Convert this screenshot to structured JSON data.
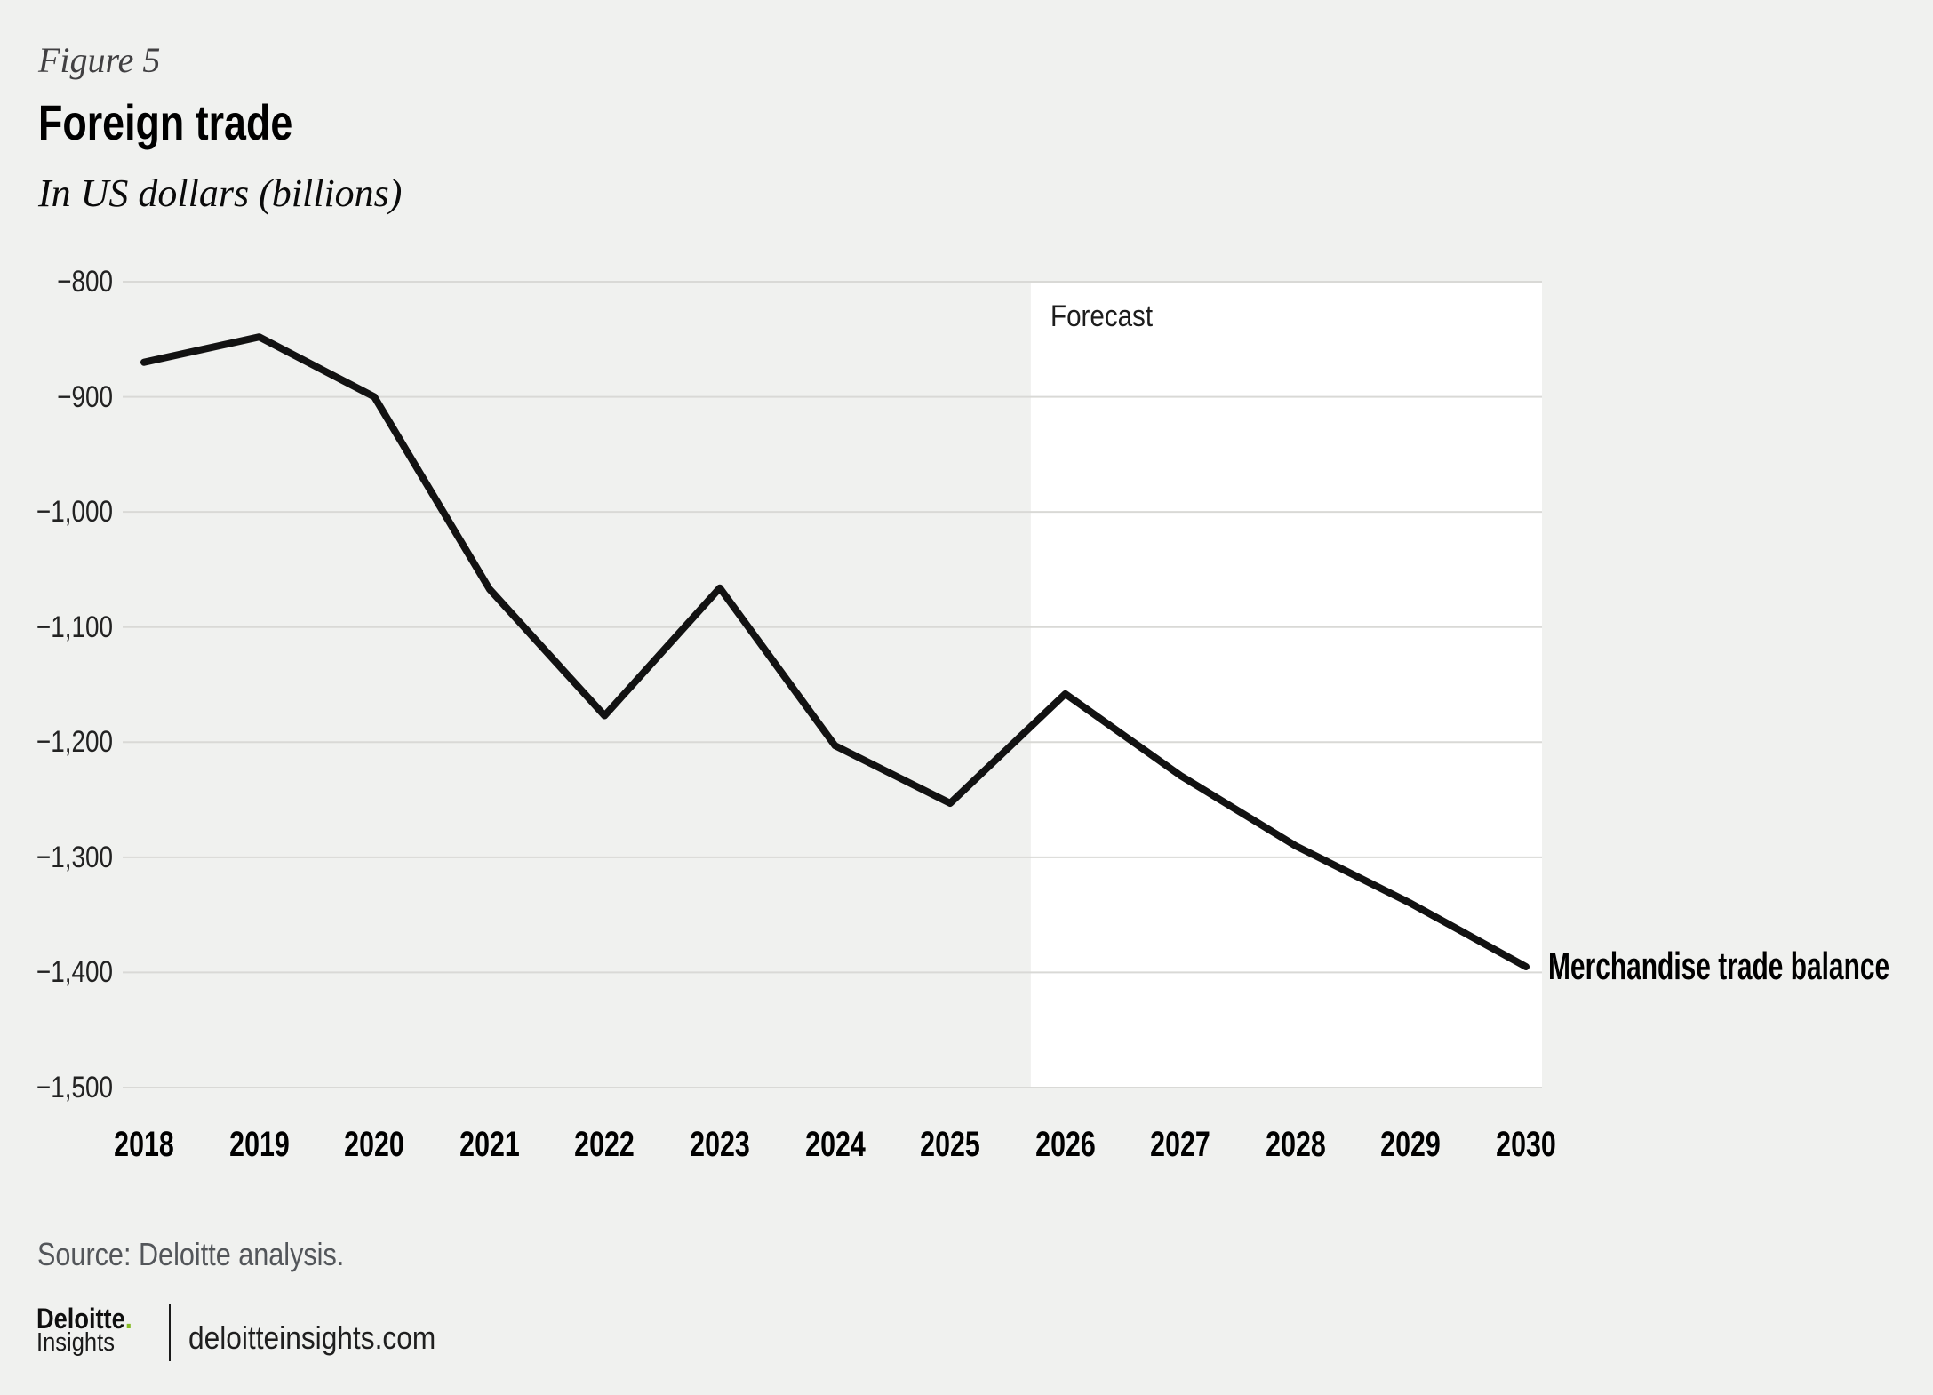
{
  "header": {
    "figure_label": "Figure 5",
    "title": "Foreign trade",
    "subtitle": "In US dollars (billions)"
  },
  "chart": {
    "forecast_label": "Forecast",
    "series_label": "Merchandise trade balance"
  },
  "chart_data": {
    "type": "line",
    "title": "Foreign trade",
    "subtitle": "In US dollars (billions)",
    "categories": [
      "2018",
      "2019",
      "2020",
      "2021",
      "2022",
      "2023",
      "2024",
      "2025",
      "2026",
      "2027",
      "2028",
      "2029",
      "2030"
    ],
    "series": [
      {
        "name": "Merchandise trade balance",
        "values": [
          -870,
          -848,
          -900,
          -1067,
          -1177,
          -1066,
          -1203,
          -1253,
          -1158,
          -1229,
          -1290,
          -1340,
          -1395
        ]
      }
    ],
    "ylim": [
      -1500,
      -800
    ],
    "y_ticks": [
      {
        "label": "−800",
        "value": -800
      },
      {
        "label": "−900",
        "value": -900
      },
      {
        "label": "−1,000",
        "value": -1000
      },
      {
        "label": "−1,100",
        "value": -1100
      },
      {
        "label": "−1,200",
        "value": -1200
      },
      {
        "label": "−1,300",
        "value": -1300
      },
      {
        "label": "−1,400",
        "value": -1400
      },
      {
        "label": "−1,500",
        "value": -1500
      }
    ],
    "grid": "horizontal",
    "legend": "series-label-at-line-end",
    "forecast_from_category": "2026",
    "forecast_label": "Forecast"
  },
  "footer": {
    "source": "Source: Deloitte analysis.",
    "logo": {
      "brand": "Deloitte",
      "dot": ".",
      "sub": "Insights",
      "url": "deloitteinsights.com"
    }
  },
  "colors": {
    "background": "#f0f1ef",
    "forecast_background": "#ffffff",
    "gridline": "#d9d9d6",
    "line": "#121212",
    "accent_green": "#86bc25",
    "muted_text": "#53565a"
  }
}
